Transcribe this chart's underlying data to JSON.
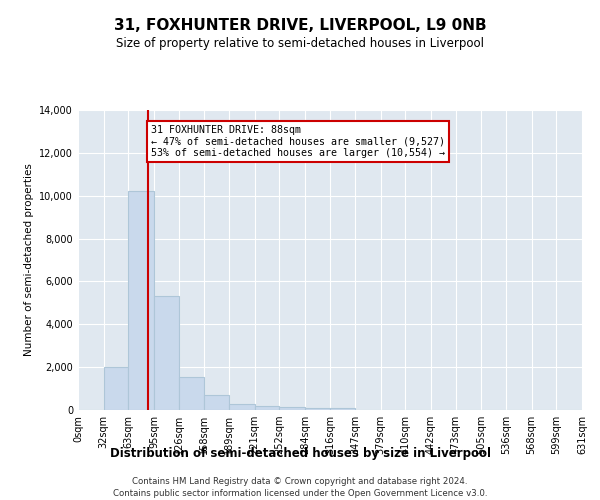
{
  "title1": "31, FOXHUNTER DRIVE, LIVERPOOL, L9 0NB",
  "title2": "Size of property relative to semi-detached houses in Liverpool",
  "xlabel": "Distribution of semi-detached houses by size in Liverpool",
  "ylabel": "Number of semi-detached properties",
  "annotation_line1": "31 FOXHUNTER DRIVE: 88sqm",
  "annotation_line2": "← 47% of semi-detached houses are smaller (9,527)",
  "annotation_line3": "53% of semi-detached houses are larger (10,554) →",
  "footer1": "Contains HM Land Registry data © Crown copyright and database right 2024.",
  "footer2": "Contains public sector information licensed under the Open Government Licence v3.0.",
  "bar_edges": [
    0,
    32,
    63,
    95,
    126,
    158,
    189,
    221,
    252,
    284,
    316,
    347,
    379,
    410,
    442,
    473,
    505,
    536,
    568,
    599,
    631
  ],
  "bar_heights": [
    0,
    2000,
    10200,
    5300,
    1550,
    700,
    300,
    175,
    120,
    100,
    100,
    0,
    0,
    0,
    0,
    0,
    0,
    0,
    0,
    0
  ],
  "property_size": 88,
  "bar_color": "#c9d9ec",
  "bar_edge_color": "#aec6d8",
  "line_color": "#cc0000",
  "annotation_box_color": "#cc0000",
  "background_color": "#e0e8f0",
  "grid_color": "#ffffff",
  "ylim": [
    0,
    14000
  ],
  "yticks": [
    0,
    2000,
    4000,
    6000,
    8000,
    10000,
    12000,
    14000
  ],
  "figsize": [
    6.0,
    5.0
  ],
  "dpi": 100
}
